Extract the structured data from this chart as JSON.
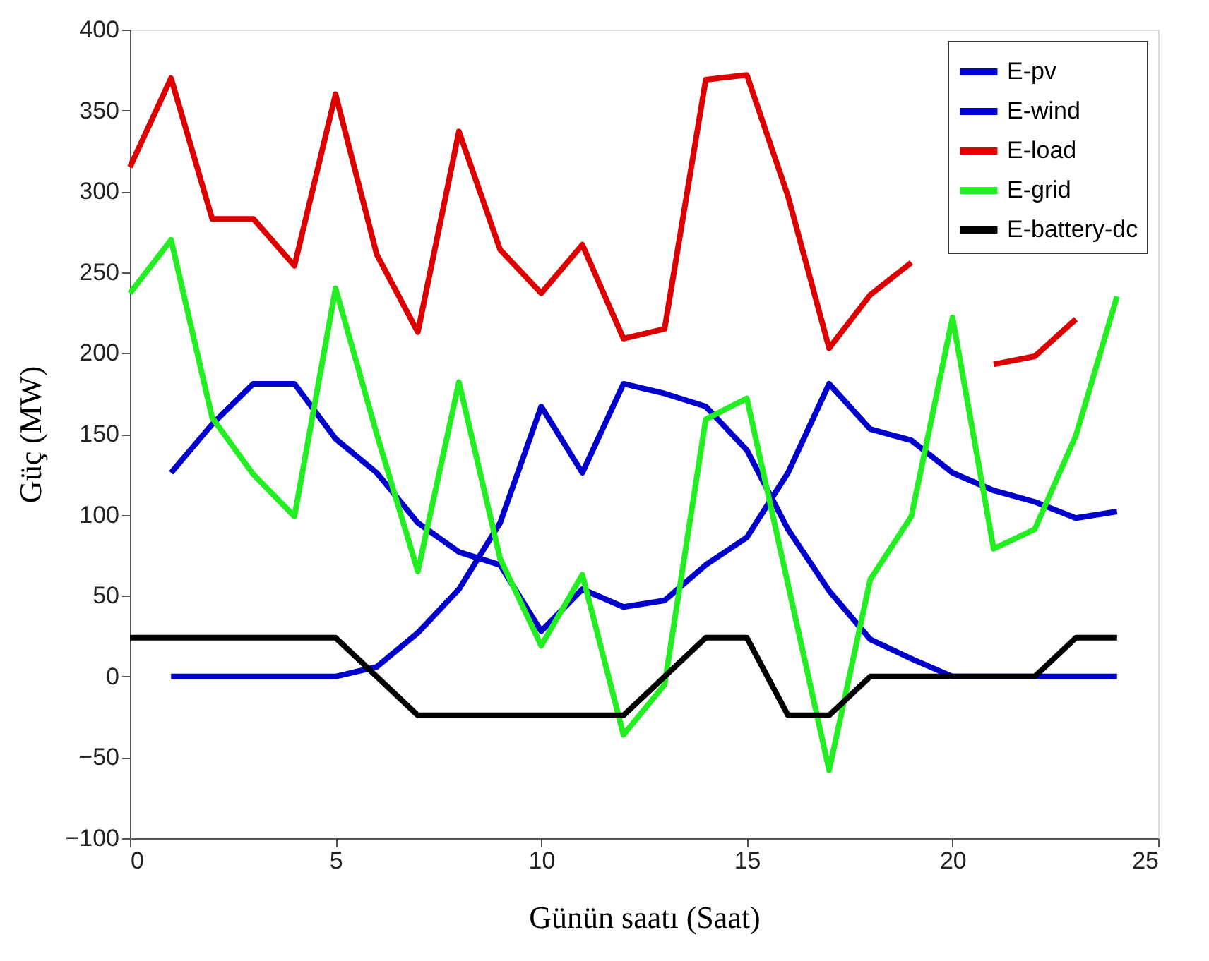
{
  "chart_data": {
    "type": "line",
    "xlabel": "Günün saatı (Saat)",
    "ylabel": "Güç (MW)",
    "x": [
      0,
      1,
      2,
      3,
      4,
      5,
      6,
      7,
      8,
      9,
      10,
      11,
      12,
      13,
      14,
      15,
      16,
      17,
      18,
      19,
      20,
      21,
      22,
      23,
      24
    ],
    "series": [
      {
        "name": "E-pv",
        "color": "#0000cc",
        "values": [
          null,
          0,
          0,
          0,
          0,
          0,
          6,
          27,
          54,
          95,
          167,
          126,
          181,
          175,
          167,
          140,
          91,
          53,
          23,
          11,
          0,
          0,
          0,
          0,
          0
        ]
      },
      {
        "name": "E-wind",
        "color": "#0000cc",
        "values": [
          null,
          126,
          156,
          181,
          181,
          147,
          126,
          95,
          77,
          69,
          28,
          54,
          43,
          47,
          69,
          86,
          126,
          181,
          153,
          146,
          126,
          115,
          108,
          98,
          102
        ]
      },
      {
        "name": "E-load",
        "color": "#dd0000",
        "values": [
          315,
          370,
          283,
          283,
          254,
          360,
          261,
          213,
          337,
          264,
          237,
          267,
          209,
          215,
          369,
          372,
          297,
          203,
          236,
          256,
          null,
          193,
          198,
          221,
          null
        ]
      },
      {
        "name": "E-grid",
        "color": "#22ee22",
        "values": [
          237,
          270,
          160,
          125,
          99,
          240,
          150,
          65,
          182,
          73,
          19,
          63,
          -36,
          -5,
          159,
          172,
          57,
          -58,
          60,
          99,
          222,
          79,
          91,
          149,
          235
        ]
      },
      {
        "name": "E-battery-dc",
        "color": "#000000",
        "values": [
          24,
          24,
          24,
          24,
          24,
          24,
          0,
          -24,
          -24,
          -24,
          -24,
          -24,
          -24,
          0,
          24,
          24,
          -24,
          -24,
          0,
          0,
          0,
          0,
          0,
          24,
          24
        ]
      }
    ],
    "xlim": [
      0,
      25
    ],
    "xticks": [
      0,
      5,
      10,
      15,
      20,
      25
    ],
    "ylim": [
      -100,
      400
    ],
    "yticks": [
      -100,
      -50,
      0,
      50,
      100,
      150,
      200,
      250,
      300,
      350,
      400
    ],
    "grid": false,
    "legend": "top right",
    "marker": "none",
    "line_style": "solid"
  }
}
